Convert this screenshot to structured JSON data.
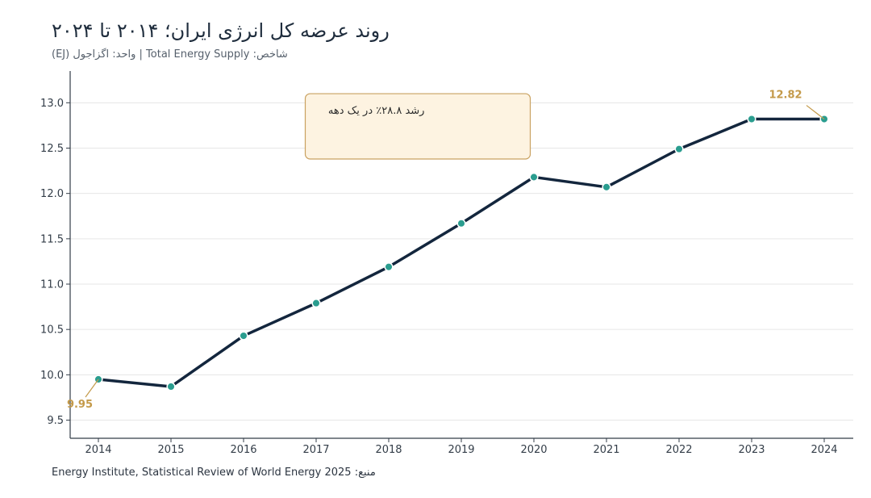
{
  "header": {
    "title": "روند عرضه کل انرژی ایران؛ ۲۰۱۴ تا ۲۰۲۴",
    "subtitle": "شاخص: Total Energy Supply | واحد: اگزاجول (EJ)"
  },
  "footer": {
    "source": "منبع: Energy Institute, Statistical Review of World Energy 2025"
  },
  "chart_data": {
    "type": "line",
    "title": "روند عرضه کل انرژی ایران؛ ۲۰۱۴ تا ۲۰۲۴",
    "subtitle": "شاخص: Total Energy Supply | واحد: اگزاجول (EJ)",
    "xlabel": "",
    "ylabel": "",
    "x": [
      "2014",
      "2015",
      "2016",
      "2017",
      "2018",
      "2019",
      "2020",
      "2021",
      "2022",
      "2023",
      "2024"
    ],
    "series": [
      {
        "values": [
          9.95,
          9.87,
          10.43,
          10.79,
          11.19,
          11.67,
          12.18,
          12.07,
          12.49,
          12.82,
          12.82
        ]
      }
    ],
    "ylim": [
      9.3,
      13.35
    ],
    "yticks": [
      "9.5",
      "10.0",
      "10.5",
      "11.0",
      "11.5",
      "12.0",
      "12.5",
      "13.0"
    ],
    "grid": "horizontal",
    "data_labels": [
      {
        "x": "2014",
        "text": "9.95"
      },
      {
        "x": "2024",
        "text": "12.82"
      }
    ],
    "annotation": "رشد ۲۸.۸٪ در یک دهه",
    "colors": {
      "line": "#13263d",
      "marker": "#2a9d8f",
      "marker_stroke": "#ffffff",
      "label": "#c49a4a",
      "annotation_fill": "#fdf3e1",
      "annotation_border": "#c9a160",
      "grid": "#e6e6e6",
      "axis": "#333d48"
    }
  }
}
